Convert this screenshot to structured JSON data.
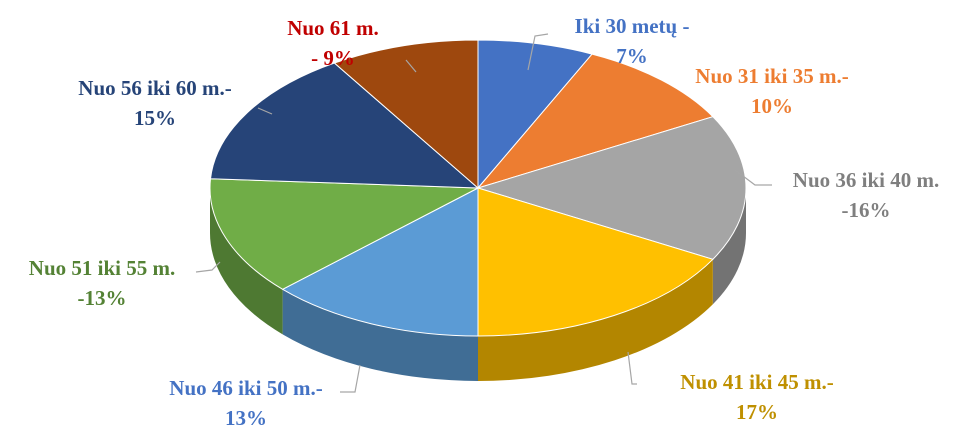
{
  "chart_data": {
    "type": "pie3d",
    "categories": [
      "Iki 30 metų -",
      "Nuo 31 iki 35 m.-",
      "Nuo 36 iki 40 m.",
      "Nuo 41 iki 45 m.-",
      "Nuo 46 iki 50 m.-",
      "Nuo 51 iki 55 m.",
      "Nuo 56 iki 60 m.-",
      "Nuo 61 m."
    ],
    "values": [
      7,
      10,
      16,
      17,
      13,
      13,
      15,
      9
    ],
    "value_labels": [
      "7%",
      "10%",
      "-16%",
      "17%",
      "13%",
      "-13%",
      "15%",
      "- 9%"
    ],
    "colors": [
      "#4472c4",
      "#ed7d31",
      "#a5a5a5",
      "#ffc000",
      "#5b9bd5",
      "#70ad47",
      "#264478",
      "#9e480e"
    ],
    "label_colors": [
      "#4472c4",
      "#ed7d31",
      "#7f7f7f",
      "#bf9000",
      "#4472c4",
      "#548235",
      "#264478",
      "#c00000"
    ]
  }
}
